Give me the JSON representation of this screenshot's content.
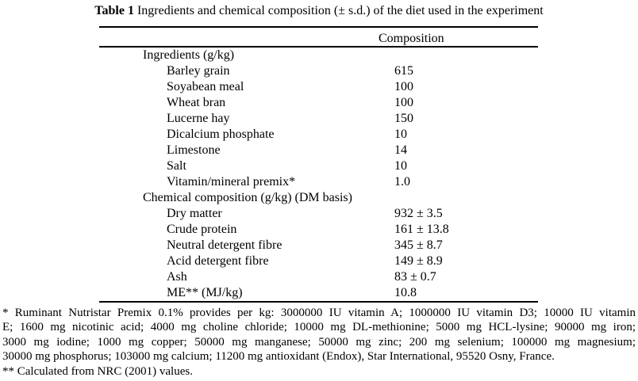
{
  "title": {
    "label": "Table 1",
    "text": " Ingredients and chemical composition (± s.d.) of the diet used in the experiment"
  },
  "table": {
    "column_header": "Composition",
    "rows": [
      {
        "label": "Ingredients (g/kg)",
        "value": "",
        "level": "section"
      },
      {
        "label": "Barley grain",
        "value": "615",
        "level": "item"
      },
      {
        "label": "Soyabean meal",
        "value": "100",
        "level": "item"
      },
      {
        "label": "Wheat bran",
        "value": "100",
        "level": "item"
      },
      {
        "label": "Lucerne hay",
        "value": "150",
        "level": "item"
      },
      {
        "label": "Dicalcium phosphate",
        "value": "10",
        "level": "item"
      },
      {
        "label": "Limestone",
        "value": "14",
        "level": "item"
      },
      {
        "label": "Salt",
        "value": "10",
        "level": "item"
      },
      {
        "label": "Vitamin/mineral premix*",
        "value": "1.0",
        "level": "item"
      },
      {
        "label": "Chemical composition (g/kg) (DM basis)",
        "value": "",
        "level": "section"
      },
      {
        "label": "Dry matter",
        "value": "932 ± 3.5",
        "level": "item"
      },
      {
        "label": "Crude protein",
        "value": "161 ± 13.8",
        "level": "item"
      },
      {
        "label": "Neutral detergent fibre",
        "value": "345 ± 8.7",
        "level": "item"
      },
      {
        "label": "Acid detergent fibre",
        "value": "149 ± 8.9",
        "level": "item"
      },
      {
        "label": "Ash",
        "value": "83 ± 0.7",
        "level": "item"
      },
      {
        "label": "ME** (MJ/kg)",
        "value": "10.8",
        "level": "item"
      }
    ]
  },
  "footnotes": {
    "premix_note_lines": [
      "* Ruminant Nutristar Premix 0.1% provides per kg: 3000000 IU vitamin A; 1000000 IU vitamin D3; 10000 IU vitamin",
      "E; 1600 mg nicotinic acid; 4000 mg choline chloride; 10000 mg DL-methionine; 5000 mg HCL-lysine; 90000 mg iron;",
      "3000 mg iodine; 1000 mg copper; 50000 mg manganese; 50000 mg zinc; 200 mg selenium; 100000 mg magnesium;",
      "30000 mg phosphorus; 103000 mg calcium; 11200 mg antioxidant (Endox), Star International, 95520 Osny, France."
    ],
    "calculated_note": "** Calculated from NRC (2001) values."
  },
  "colors": {
    "text": "#000000",
    "background": "#ffffff",
    "rule": "#000000"
  }
}
